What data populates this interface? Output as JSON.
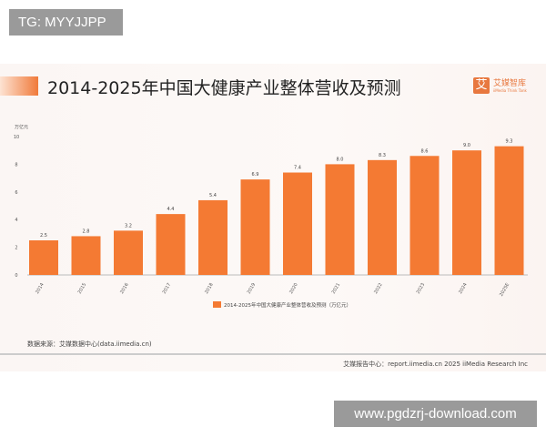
{
  "watermarks": {
    "top_left": "TG: MYYJJPP",
    "bottom_right": "www.pgdzrj-download.com"
  },
  "header": {
    "title": "2014-2025年中国大健康产业整体营收及预测",
    "logo_mark": "艾",
    "logo_name": "艾媒智库",
    "logo_sub": "iiMedia Think Tank"
  },
  "source": "数据来源：艾媒数据中心(data.iimedia.cn)",
  "footer": "艾媒报告中心：report.iimedia.cn   2025 iiMedia Research Inc",
  "colors": {
    "bar": "#f47a33"
  },
  "chart_data": {
    "type": "bar",
    "title": "2014-2025年中国大健康产业整体营收及预测",
    "ylabel": "万亿元",
    "ylim": [
      0,
      10
    ],
    "yticks": [
      0,
      2,
      4,
      6,
      8,
      10
    ],
    "categories": [
      "2014",
      "2015",
      "2016",
      "2017",
      "2018",
      "2019",
      "2020",
      "2021",
      "2022",
      "2023",
      "2024",
      "2025E"
    ],
    "series": [
      {
        "name": "2014-2025年中国大健康产业整体营收及预测（万亿元）",
        "values": [
          2.5,
          2.8,
          3.2,
          4.4,
          5.4,
          6.9,
          7.4,
          8.0,
          8.3,
          8.6,
          9.0,
          9.3
        ]
      }
    ],
    "legend": "bottom-center",
    "grid": false
  }
}
